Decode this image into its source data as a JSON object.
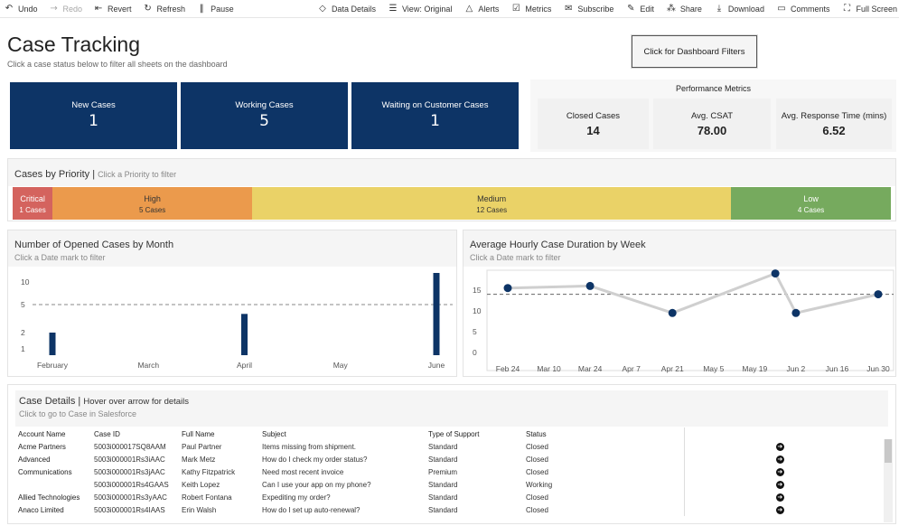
{
  "toolbar": {
    "left": [
      {
        "name": "undo",
        "label": "Undo",
        "icon": "↶",
        "disabled": false
      },
      {
        "name": "redo",
        "label": "Redo",
        "icon": "→",
        "disabled": true
      },
      {
        "name": "revert",
        "label": "Revert",
        "icon": "⇤",
        "disabled": false
      },
      {
        "name": "refresh",
        "label": "Refresh",
        "icon": "↻",
        "disabled": false
      },
      {
        "name": "pause",
        "label": "Pause",
        "icon": "‖",
        "disabled": false
      }
    ],
    "right": [
      {
        "name": "data-details",
        "label": "Data Details",
        "icon": "◇"
      },
      {
        "name": "view-original",
        "label": "View: Original",
        "icon": "☰"
      },
      {
        "name": "alerts",
        "label": "Alerts",
        "icon": "△"
      },
      {
        "name": "metrics",
        "label": "Metrics",
        "icon": "☑"
      },
      {
        "name": "subscribe",
        "label": "Subscribe",
        "icon": "✉"
      },
      {
        "name": "edit",
        "label": "Edit",
        "icon": "✎"
      },
      {
        "name": "share",
        "label": "Share",
        "icon": "⁂"
      },
      {
        "name": "download",
        "label": "Download",
        "icon": "⤓"
      },
      {
        "name": "comments",
        "label": "Comments",
        "icon": "▭"
      },
      {
        "name": "full-screen",
        "label": "Full Screen",
        "icon": "⛶"
      }
    ]
  },
  "header": {
    "title": "Case Tracking",
    "subtitle": "Click a case status below to filter all sheets on the dashboard",
    "filter_button": "Click for Dashboard Filters"
  },
  "status_tiles": [
    {
      "label": "New Cases",
      "value": "1"
    },
    {
      "label": "Working Cases",
      "value": "5"
    },
    {
      "label": "Waiting on Customer Cases",
      "value": "1"
    }
  ],
  "performance": {
    "title": "Performance Metrics",
    "metrics": [
      {
        "label": "Closed Cases",
        "value": "14"
      },
      {
        "label": "Avg. CSAT",
        "value": "78.00"
      },
      {
        "label": "Avg. Response Time (mins)",
        "value": "6.52"
      }
    ]
  },
  "priority": {
    "title": "Cases by Priority",
    "separator": "|",
    "hint": "Click a Priority to filter",
    "segments": [
      {
        "name": "Critical",
        "count_label": "1 Cases",
        "count": 1,
        "color": "#d4635e",
        "text_color": "#ffffff"
      },
      {
        "name": "High",
        "count_label": "5 Cases",
        "count": 5,
        "color": "#eb9a4c",
        "text_color": "#333333"
      },
      {
        "name": "Medium",
        "count_label": "12 Cases",
        "count": 12,
        "color": "#ead267",
        "text_color": "#333333"
      },
      {
        "name": "Low",
        "count_label": "4 Cases",
        "count": 4,
        "color": "#76aa5e",
        "text_color": "#ffffff"
      }
    ]
  },
  "opened_chart": {
    "title": "Number of Opened Cases by Month",
    "subtitle": "Click a Date mark to filter"
  },
  "duration_chart": {
    "title": "Average Hourly Case Duration by Week",
    "subtitle": "Click a Date mark to filter"
  },
  "chart_data": [
    {
      "type": "bar",
      "title": "Number of Opened Cases by Month",
      "categories": [
        "February",
        "March",
        "April",
        "May",
        "June"
      ],
      "values": [
        2,
        0,
        4,
        0,
        11
      ],
      "yticks": [
        "10",
        "5",
        "2",
        "1"
      ],
      "reference_line": 5,
      "bar_color": "#0d3466"
    },
    {
      "type": "line",
      "title": "Average Hourly Case Duration by Week",
      "x_labels": [
        "Feb 24",
        "Mar 10",
        "Mar 24",
        "Apr 7",
        "Apr 21",
        "May 5",
        "May 19",
        "Jun 2",
        "Jun 16",
        "Jun 30"
      ],
      "points": [
        {
          "x": "Feb 24",
          "y": 15.5
        },
        {
          "x": "Mar 24",
          "y": 16
        },
        {
          "x": "Apr 21",
          "y": 9.5
        },
        {
          "x": "May 26",
          "y": 19
        },
        {
          "x": "Jun 2",
          "y": 9.5
        },
        {
          "x": "Jun 30",
          "y": 14
        }
      ],
      "yticks": [
        "15",
        "10",
        "5",
        "0"
      ],
      "ylim": [
        0,
        20
      ],
      "reference_line": 14,
      "line_color": "#cfcfcf",
      "marker_color": "#0d3466"
    }
  ],
  "details": {
    "title": "Case Details",
    "separator": "|",
    "hint": "Hover over arrow for details",
    "subtitle": "Click to go to Case in Salesforce",
    "columns": [
      "Account Name",
      "Case ID",
      "Full Name",
      "Subject",
      "Type of Support",
      "Status"
    ],
    "rows": [
      {
        "account": "Acme Partners",
        "case_id": "5003i000017SQ8AAM",
        "name": "Paul Partner",
        "subject": "Items missing from shipment.",
        "support": "Standard",
        "status": "Closed"
      },
      {
        "account": "Advanced",
        "case_id": "5003i000001Rs3iAAC",
        "name": "Mark Metz",
        "subject": "How do I check my order status?",
        "support": "Standard",
        "status": "Closed"
      },
      {
        "account": "Communications",
        "case_id": "5003i000001Rs3jAAC",
        "name": "Kathy Fitzpatrick",
        "subject": "Need most recent invoice",
        "support": "Premium",
        "status": "Closed"
      },
      {
        "account": "",
        "case_id": "5003i000001Rs4GAAS",
        "name": "Keith Lopez",
        "subject": "Can I use your app on my phone?",
        "support": "Standard",
        "status": "Working"
      },
      {
        "account": "Allied Technologies",
        "case_id": "5003i000001Rs3yAAC",
        "name": "Robert Fontana",
        "subject": "Expediting my order?",
        "support": "Standard",
        "status": "Closed"
      },
      {
        "account": "Anaco Limited",
        "case_id": "5003i000001Rs4IAAS",
        "name": "Erin Walsh",
        "subject": "How do I set up auto-renewal?",
        "support": "Standard",
        "status": "Closed"
      }
    ]
  }
}
